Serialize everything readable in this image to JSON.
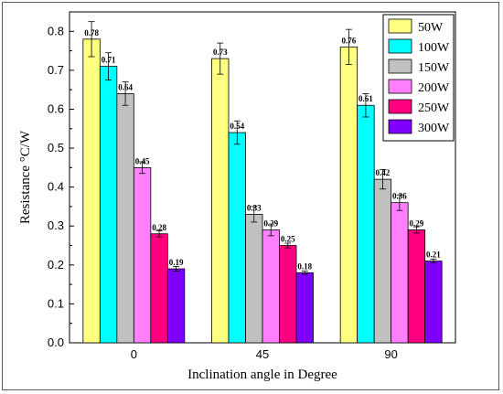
{
  "chart_data": {
    "type": "bar",
    "xlabel": "Inclination angle in Degree",
    "ylabel": "Resistance °C/W",
    "ylim": [
      0.0,
      0.85
    ],
    "yticks": [
      "0.0",
      "0.1",
      "0.2",
      "0.3",
      "0.4",
      "0.5",
      "0.6",
      "0.7",
      "0.8"
    ],
    "categories": [
      "0",
      "45",
      "90"
    ],
    "legend_position": "top-right",
    "series": [
      {
        "name": "50W",
        "color": "#ffff80",
        "values": [
          0.78,
          0.73,
          0.76
        ],
        "errors": [
          0.045,
          0.04,
          0.045
        ]
      },
      {
        "name": "100W",
        "color": "#00ffff",
        "values": [
          0.71,
          0.54,
          0.61
        ],
        "errors": [
          0.035,
          0.03,
          0.03
        ]
      },
      {
        "name": "150W",
        "color": "#c0c0c0",
        "values": [
          0.64,
          0.33,
          0.42
        ],
        "errors": [
          0.03,
          0.02,
          0.025
        ]
      },
      {
        "name": "200W",
        "color": "#ff80ff",
        "values": [
          0.45,
          0.29,
          0.36
        ],
        "errors": [
          0.015,
          0.015,
          0.02
        ]
      },
      {
        "name": "250W",
        "color": "#ff0080",
        "values": [
          0.28,
          0.25,
          0.29
        ],
        "errors": [
          0.008,
          0.006,
          0.008
        ]
      },
      {
        "name": "300W",
        "color": "#8000ff",
        "values": [
          0.19,
          0.18,
          0.21
        ],
        "errors": [
          0.006,
          0.004,
          0.005
        ]
      }
    ],
    "data_labels": [
      [
        "0.78",
        "0.73",
        "0.76"
      ],
      [
        "0.71",
        "0.54",
        "0.61"
      ],
      [
        "0.64",
        "0.33",
        "0.42"
      ],
      [
        "0.45",
        "0.29",
        "0.36"
      ],
      [
        "0.28",
        "0.25",
        "0.29"
      ],
      [
        "0.19",
        "0.18",
        "0.21"
      ]
    ]
  }
}
